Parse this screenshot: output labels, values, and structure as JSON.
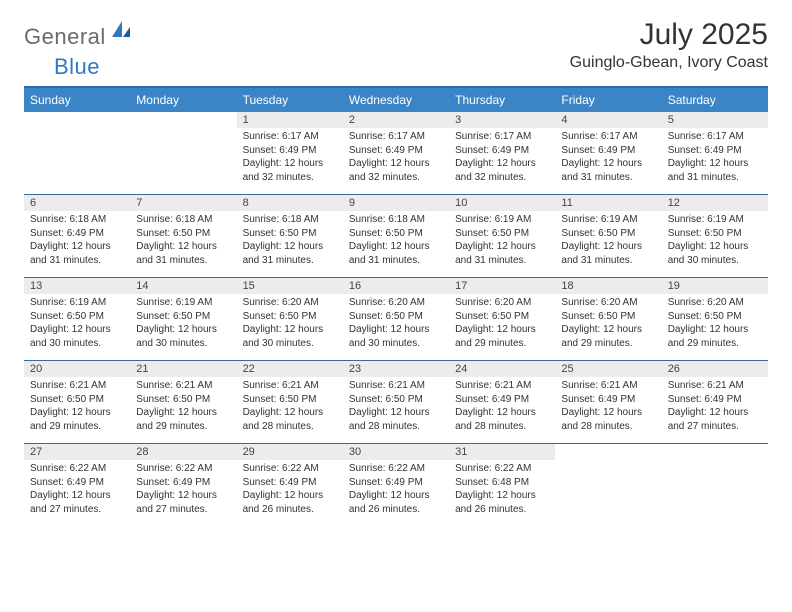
{
  "brand": {
    "part1": "General",
    "part2": "Blue",
    "color_gray": "#6b6b6b",
    "color_blue": "#2f78c3"
  },
  "title": "July 2025",
  "location": "Guinglo-Gbean, Ivory Coast",
  "colors": {
    "header_bg": "#3b85c7",
    "header_border": "#2f6aa8",
    "row_divider": "#3b6a9a",
    "daynum_bg": "#ececec",
    "text": "#333333"
  },
  "weekdays": [
    "Sunday",
    "Monday",
    "Tuesday",
    "Wednesday",
    "Thursday",
    "Friday",
    "Saturday"
  ],
  "weeks": [
    [
      null,
      null,
      {
        "n": "1",
        "sr": "6:17 AM",
        "ss": "6:49 PM",
        "dl": "12 hours and 32 minutes."
      },
      {
        "n": "2",
        "sr": "6:17 AM",
        "ss": "6:49 PM",
        "dl": "12 hours and 32 minutes."
      },
      {
        "n": "3",
        "sr": "6:17 AM",
        "ss": "6:49 PM",
        "dl": "12 hours and 32 minutes."
      },
      {
        "n": "4",
        "sr": "6:17 AM",
        "ss": "6:49 PM",
        "dl": "12 hours and 31 minutes."
      },
      {
        "n": "5",
        "sr": "6:17 AM",
        "ss": "6:49 PM",
        "dl": "12 hours and 31 minutes."
      }
    ],
    [
      {
        "n": "6",
        "sr": "6:18 AM",
        "ss": "6:49 PM",
        "dl": "12 hours and 31 minutes."
      },
      {
        "n": "7",
        "sr": "6:18 AM",
        "ss": "6:50 PM",
        "dl": "12 hours and 31 minutes."
      },
      {
        "n": "8",
        "sr": "6:18 AM",
        "ss": "6:50 PM",
        "dl": "12 hours and 31 minutes."
      },
      {
        "n": "9",
        "sr": "6:18 AM",
        "ss": "6:50 PM",
        "dl": "12 hours and 31 minutes."
      },
      {
        "n": "10",
        "sr": "6:19 AM",
        "ss": "6:50 PM",
        "dl": "12 hours and 31 minutes."
      },
      {
        "n": "11",
        "sr": "6:19 AM",
        "ss": "6:50 PM",
        "dl": "12 hours and 31 minutes."
      },
      {
        "n": "12",
        "sr": "6:19 AM",
        "ss": "6:50 PM",
        "dl": "12 hours and 30 minutes."
      }
    ],
    [
      {
        "n": "13",
        "sr": "6:19 AM",
        "ss": "6:50 PM",
        "dl": "12 hours and 30 minutes."
      },
      {
        "n": "14",
        "sr": "6:19 AM",
        "ss": "6:50 PM",
        "dl": "12 hours and 30 minutes."
      },
      {
        "n": "15",
        "sr": "6:20 AM",
        "ss": "6:50 PM",
        "dl": "12 hours and 30 minutes."
      },
      {
        "n": "16",
        "sr": "6:20 AM",
        "ss": "6:50 PM",
        "dl": "12 hours and 30 minutes."
      },
      {
        "n": "17",
        "sr": "6:20 AM",
        "ss": "6:50 PM",
        "dl": "12 hours and 29 minutes."
      },
      {
        "n": "18",
        "sr": "6:20 AM",
        "ss": "6:50 PM",
        "dl": "12 hours and 29 minutes."
      },
      {
        "n": "19",
        "sr": "6:20 AM",
        "ss": "6:50 PM",
        "dl": "12 hours and 29 minutes."
      }
    ],
    [
      {
        "n": "20",
        "sr": "6:21 AM",
        "ss": "6:50 PM",
        "dl": "12 hours and 29 minutes."
      },
      {
        "n": "21",
        "sr": "6:21 AM",
        "ss": "6:50 PM",
        "dl": "12 hours and 29 minutes."
      },
      {
        "n": "22",
        "sr": "6:21 AM",
        "ss": "6:50 PM",
        "dl": "12 hours and 28 minutes."
      },
      {
        "n": "23",
        "sr": "6:21 AM",
        "ss": "6:50 PM",
        "dl": "12 hours and 28 minutes."
      },
      {
        "n": "24",
        "sr": "6:21 AM",
        "ss": "6:49 PM",
        "dl": "12 hours and 28 minutes."
      },
      {
        "n": "25",
        "sr": "6:21 AM",
        "ss": "6:49 PM",
        "dl": "12 hours and 28 minutes."
      },
      {
        "n": "26",
        "sr": "6:21 AM",
        "ss": "6:49 PM",
        "dl": "12 hours and 27 minutes."
      }
    ],
    [
      {
        "n": "27",
        "sr": "6:22 AM",
        "ss": "6:49 PM",
        "dl": "12 hours and 27 minutes."
      },
      {
        "n": "28",
        "sr": "6:22 AM",
        "ss": "6:49 PM",
        "dl": "12 hours and 27 minutes."
      },
      {
        "n": "29",
        "sr": "6:22 AM",
        "ss": "6:49 PM",
        "dl": "12 hours and 26 minutes."
      },
      {
        "n": "30",
        "sr": "6:22 AM",
        "ss": "6:49 PM",
        "dl": "12 hours and 26 minutes."
      },
      {
        "n": "31",
        "sr": "6:22 AM",
        "ss": "6:48 PM",
        "dl": "12 hours and 26 minutes."
      },
      null,
      null
    ]
  ],
  "labels": {
    "sunrise": "Sunrise: ",
    "sunset": "Sunset: ",
    "daylight": "Daylight: "
  }
}
